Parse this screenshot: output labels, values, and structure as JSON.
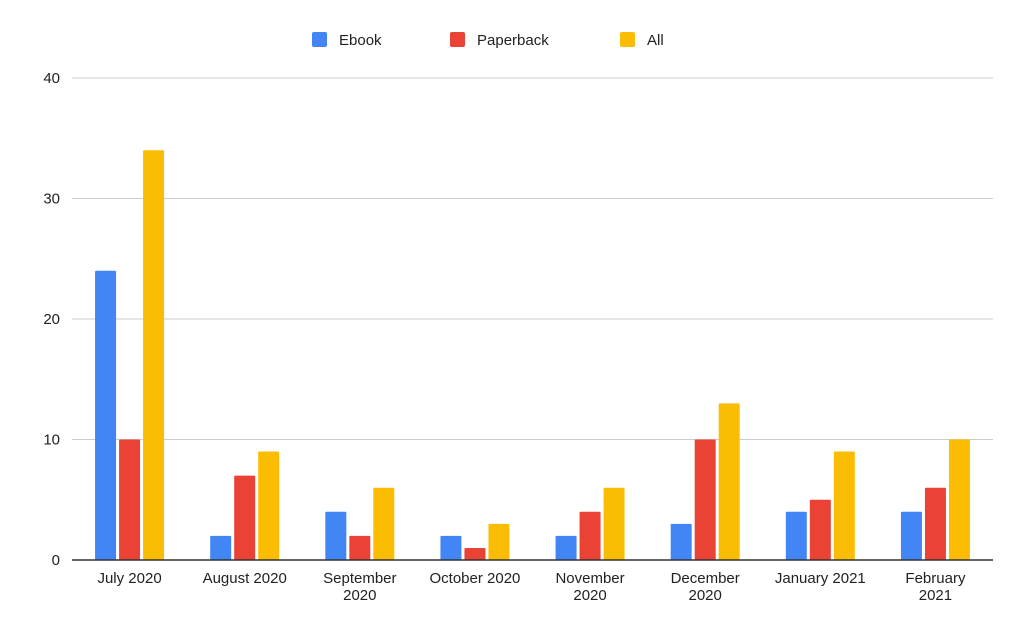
{
  "chart_data": {
    "type": "bar",
    "categories": [
      [
        "July 2020"
      ],
      [
        "August 2020"
      ],
      [
        "September",
        "2020"
      ],
      [
        "October 2020"
      ],
      [
        "November",
        "2020"
      ],
      [
        "December",
        "2020"
      ],
      [
        "January 2021"
      ],
      [
        "February",
        "2021"
      ]
    ],
    "series": [
      {
        "name": "Ebook",
        "color": "#4285f4",
        "values": [
          24,
          2,
          4,
          2,
          2,
          3,
          4,
          4
        ]
      },
      {
        "name": "Paperback",
        "color": "#ea4335",
        "values": [
          10,
          7,
          2,
          1,
          4,
          10,
          5,
          6
        ]
      },
      {
        "name": "All",
        "color": "#fbbc04",
        "values": [
          34,
          9,
          6,
          3,
          6,
          13,
          9,
          10
        ]
      }
    ],
    "ylim": [
      0,
      40
    ],
    "yticks": [
      0,
      10,
      20,
      30,
      40
    ],
    "grid": true,
    "legend_position": "top-center",
    "title": "",
    "xlabel": "",
    "ylabel": ""
  }
}
